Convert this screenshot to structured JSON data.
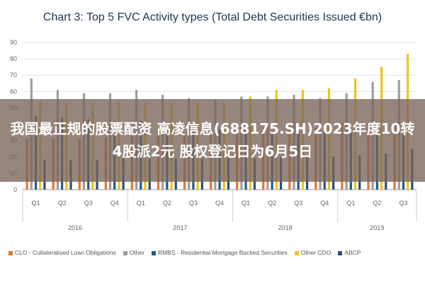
{
  "chart_data": {
    "type": "bar",
    "title": "Chart 3: Top 5 FVC Activity types (Total Debt Securities Issued €bn)",
    "ylim": [
      0,
      90
    ],
    "yticks": [
      0,
      10,
      20,
      30,
      40,
      50,
      60,
      70,
      80,
      90
    ],
    "grid": true,
    "legend_position": "bottom",
    "categories": [
      "Q1",
      "Q2",
      "Q3",
      "Q4",
      "Q1",
      "Q2",
      "Q3",
      "Q4",
      "Q1",
      "Q2",
      "Q3",
      "Q4",
      "Q1",
      "Q2",
      "Q3"
    ],
    "year_groups": [
      {
        "label": "2016",
        "count": 4
      },
      {
        "label": "2017",
        "count": 4
      },
      {
        "label": "2018",
        "count": 4
      },
      {
        "label": "2019",
        "count": 3
      }
    ],
    "series": [
      {
        "name": "CLO - Collateralised Loan Obligations",
        "color": "#e8752e",
        "values": [
          31,
          31,
          31,
          32,
          33,
          33,
          33,
          33,
          37,
          38,
          39,
          38,
          41,
          41,
          40
        ]
      },
      {
        "name": "Other",
        "color": "#9e9e9e",
        "values": [
          68,
          61,
          59,
          59,
          61,
          58,
          56,
          55,
          57,
          57,
          58,
          56,
          59,
          66,
          67
        ]
      },
      {
        "name": "RMBS - Residential Mortgage Backed Securities",
        "color": "#1f5b85",
        "values": [
          45,
          44,
          43,
          42,
          42,
          41,
          39,
          37,
          37,
          36,
          36,
          37,
          35,
          35,
          34
        ]
      },
      {
        "name": "Other CDO",
        "color": "#f0c419",
        "values": [
          54,
          53,
          53,
          53,
          53,
          53,
          53,
          53,
          57,
          61,
          61,
          62,
          68,
          75,
          83
        ]
      },
      {
        "name": "ABCP",
        "color": "#2e4a7a",
        "values": [
          18,
          18,
          18,
          19,
          19,
          19,
          19,
          19,
          19,
          20,
          20,
          20,
          21,
          22,
          25
        ]
      }
    ]
  },
  "overlay": {
    "text": "我国最正规的股票配资 高凌信息(688175.SH)2023年度10转4股派2元 股权登记日为6月5日"
  }
}
